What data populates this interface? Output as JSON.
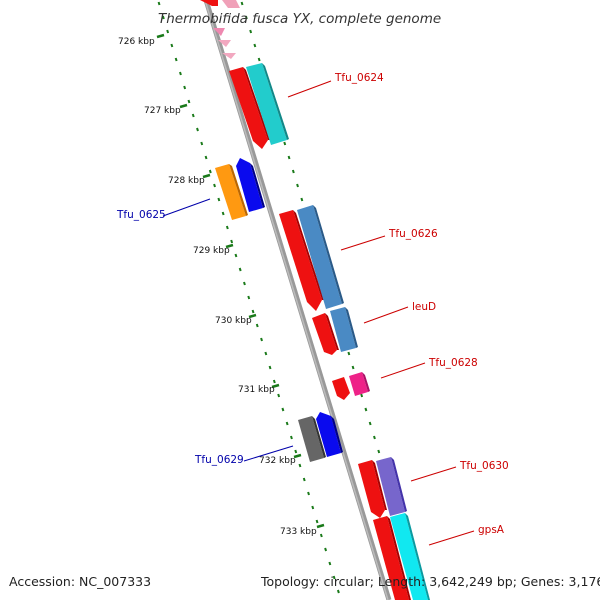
{
  "title": "Thermobifida fusca YX, complete genome",
  "footer": {
    "accession": "Accession: NC_007333",
    "topology": "Topology: circular; Length: 3,642,249 bp; Genes: 3,176"
  },
  "colors": {
    "backbone": "#888888",
    "tick": "#1a7a1a",
    "forward_label": "#cc0000",
    "reverse_label": "#0000aa"
  },
  "ticks": [
    {
      "label": "726 kbp",
      "position_kbp": 726
    },
    {
      "label": "727 kbp",
      "position_kbp": 727
    },
    {
      "label": "728 kbp",
      "position_kbp": 728
    },
    {
      "label": "729 kbp",
      "position_kbp": 729
    },
    {
      "label": "730 kbp",
      "position_kbp": 730
    },
    {
      "label": "731 kbp",
      "position_kbp": 731
    },
    {
      "label": "732 kbp",
      "position_kbp": 732
    },
    {
      "label": "733 kbp",
      "position_kbp": 733
    }
  ],
  "gene_labels": [
    {
      "text": "Tfu_0624",
      "strand": "forward"
    },
    {
      "text": "Tfu_0625",
      "strand": "reverse"
    },
    {
      "text": "Tfu_0626",
      "strand": "forward"
    },
    {
      "text": "leuD",
      "strand": "forward"
    },
    {
      "text": "Tfu_0628",
      "strand": "forward"
    },
    {
      "text": "Tfu_0629",
      "strand": "reverse"
    },
    {
      "text": "Tfu_0630",
      "strand": "forward"
    },
    {
      "text": "gpsA",
      "strand": "forward"
    }
  ]
}
